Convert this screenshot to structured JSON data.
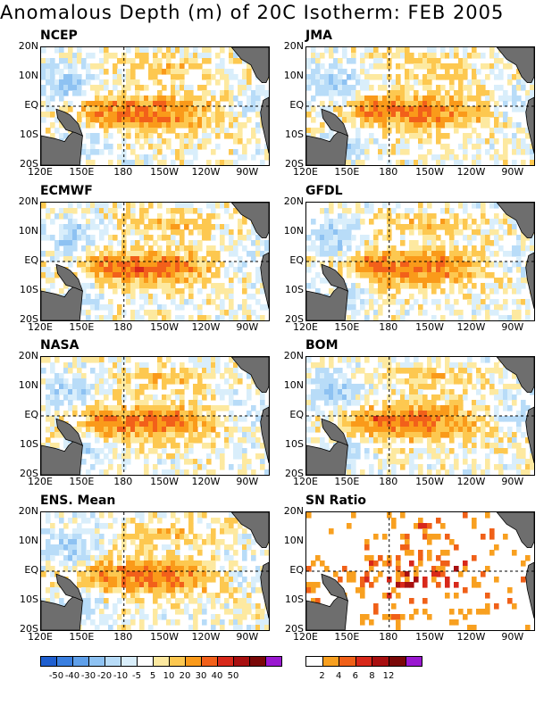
{
  "title": "Anomalous Depth (m) of 20C Isotherm: FEB 2005",
  "panels": [
    {
      "name": "NCEP"
    },
    {
      "name": "JMA"
    },
    {
      "name": "ECMWF"
    },
    {
      "name": "GFDL"
    },
    {
      "name": "NASA"
    },
    {
      "name": "BOM"
    },
    {
      "name": "ENS. Mean"
    },
    {
      "name": "SN Ratio"
    }
  ],
  "axes": {
    "y_ticks": [
      "20N",
      "10N",
      "EQ",
      "10S",
      "20S"
    ],
    "x_ticks": [
      "120E",
      "150E",
      "180",
      "150W",
      "120W",
      "90W"
    ]
  },
  "colorbars": {
    "anomaly": {
      "labels": [
        "-50",
        "-40",
        "-30",
        "-20",
        "-10",
        "-5",
        "5",
        "10",
        "20",
        "30",
        "40",
        "50"
      ],
      "colors": [
        "#1f5fd0",
        "#3a7fe0",
        "#5fa0ea",
        "#8ec2f2",
        "#b8dcf8",
        "#d9eefb",
        "#ffffff",
        "#fde9a0",
        "#fdc850",
        "#fa9a1a",
        "#f2601a",
        "#d8281a",
        "#a80f10",
        "#7a0808",
        "#9a18d0"
      ]
    },
    "snratio": {
      "labels": [
        "2",
        "4",
        "6",
        "8",
        "12"
      ],
      "colors": [
        "#ffffff",
        "#f8a020",
        "#f06018",
        "#d8281a",
        "#a80f10",
        "#7a0808",
        "#9a18d0"
      ]
    }
  },
  "chart_data": {
    "type": "heatmap",
    "title": "Anomalous Depth (m) of 20C Isotherm: FEB 2005",
    "x_ticks": [
      "120E",
      "150E",
      "180",
      "150W",
      "120W",
      "90W"
    ],
    "y_ticks": [
      "20N",
      "10N",
      "EQ",
      "10S",
      "20S"
    ],
    "series": [
      {
        "name": "NCEP"
      },
      {
        "name": "JMA"
      },
      {
        "name": "ECMWF"
      },
      {
        "name": "GFDL"
      },
      {
        "name": "NASA"
      },
      {
        "name": "BOM"
      },
      {
        "name": "ENS. Mean"
      },
      {
        "name": "SN Ratio"
      }
    ]
  }
}
